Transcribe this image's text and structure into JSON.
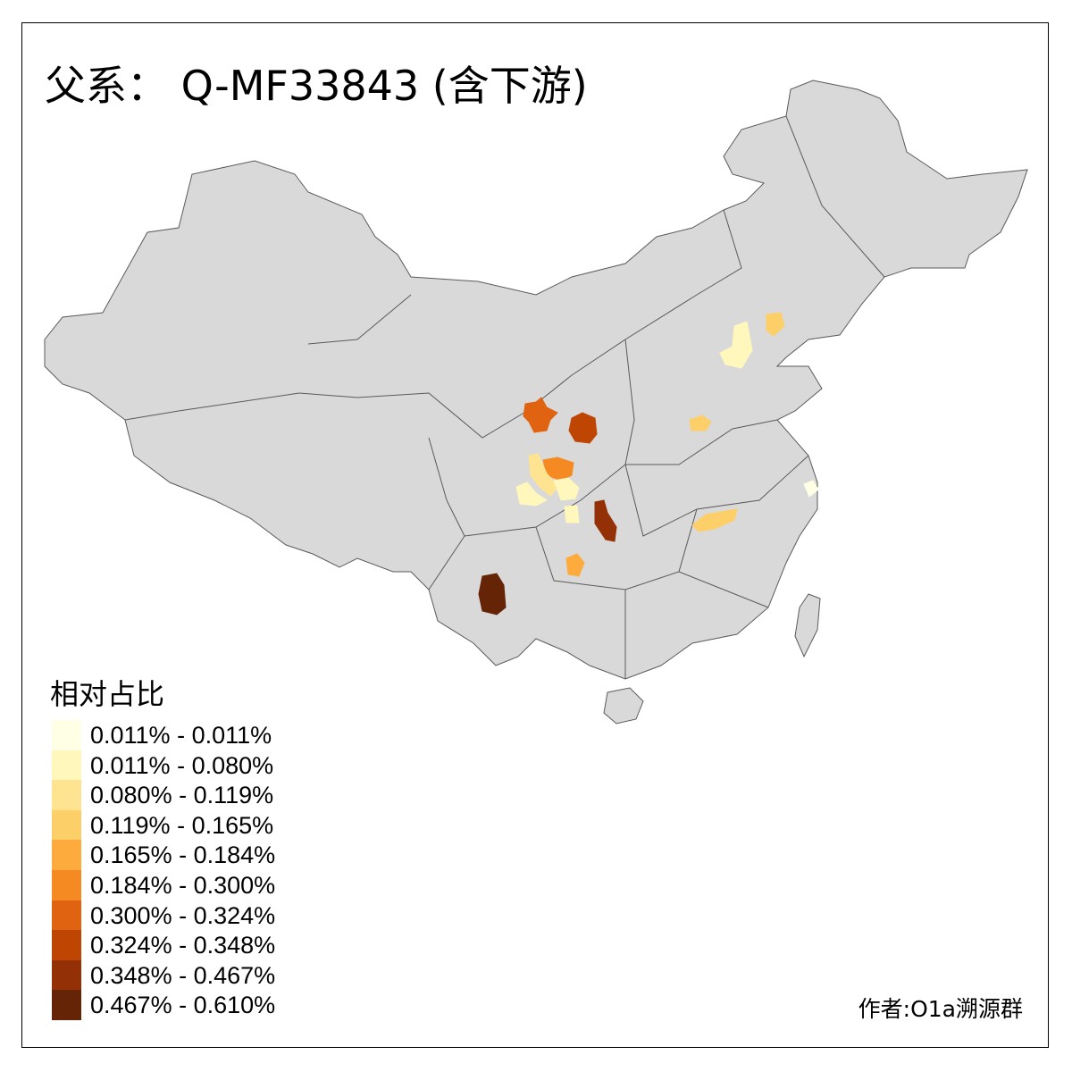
{
  "title": "父系： Q-MF33843 (含下游)",
  "legend": {
    "title": "相对占比",
    "items": [
      {
        "label": "0.011% - 0.011%",
        "color": "#FFFFE5"
      },
      {
        "label": "0.011% - 0.080%",
        "color": "#FFF7BC"
      },
      {
        "label": "0.080% - 0.119%",
        "color": "#FEE391"
      },
      {
        "label": "0.119% - 0.165%",
        "color": "#FDCF69"
      },
      {
        "label": "0.165% - 0.184%",
        "color": "#FDAB3C"
      },
      {
        "label": "0.184% - 0.300%",
        "color": "#F58A22"
      },
      {
        "label": "0.300% - 0.324%",
        "color": "#E06311"
      },
      {
        "label": "0.324% - 0.348%",
        "color": "#BF4502"
      },
      {
        "label": "0.348% - 0.467%",
        "color": "#933006"
      },
      {
        "label": "0.467% - 0.610%",
        "color": "#662407"
      }
    ]
  },
  "map_colors": {
    "land": "#D9D9D9",
    "border": "#5A5A5A"
  },
  "credit": "作者:O1a溯源群"
}
